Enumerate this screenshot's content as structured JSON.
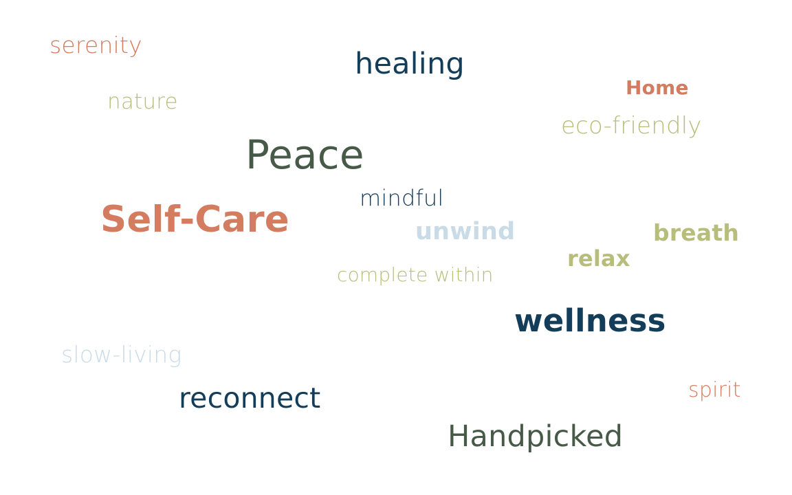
{
  "colors": {
    "terracotta": "#d47c5f",
    "navy": "#143d5a",
    "sage": "#b7bd7b",
    "forest": "#465a47",
    "light_blue": "#c9dbe7"
  },
  "words": {
    "serenity": "serenity",
    "healing": "healing",
    "home": "Home",
    "nature": "nature",
    "eco_friendly": "eco-friendly",
    "peace": "Peace",
    "mindful": "mindful",
    "self_care": "Self-Care",
    "unwind": "unwind",
    "breath": "breath",
    "relax": "relax",
    "complete_within": "complete within",
    "wellness": "wellness",
    "slow_living": "slow-living",
    "spirit": "spirit",
    "reconnect": "reconnect",
    "handpicked": "Handpicked"
  }
}
